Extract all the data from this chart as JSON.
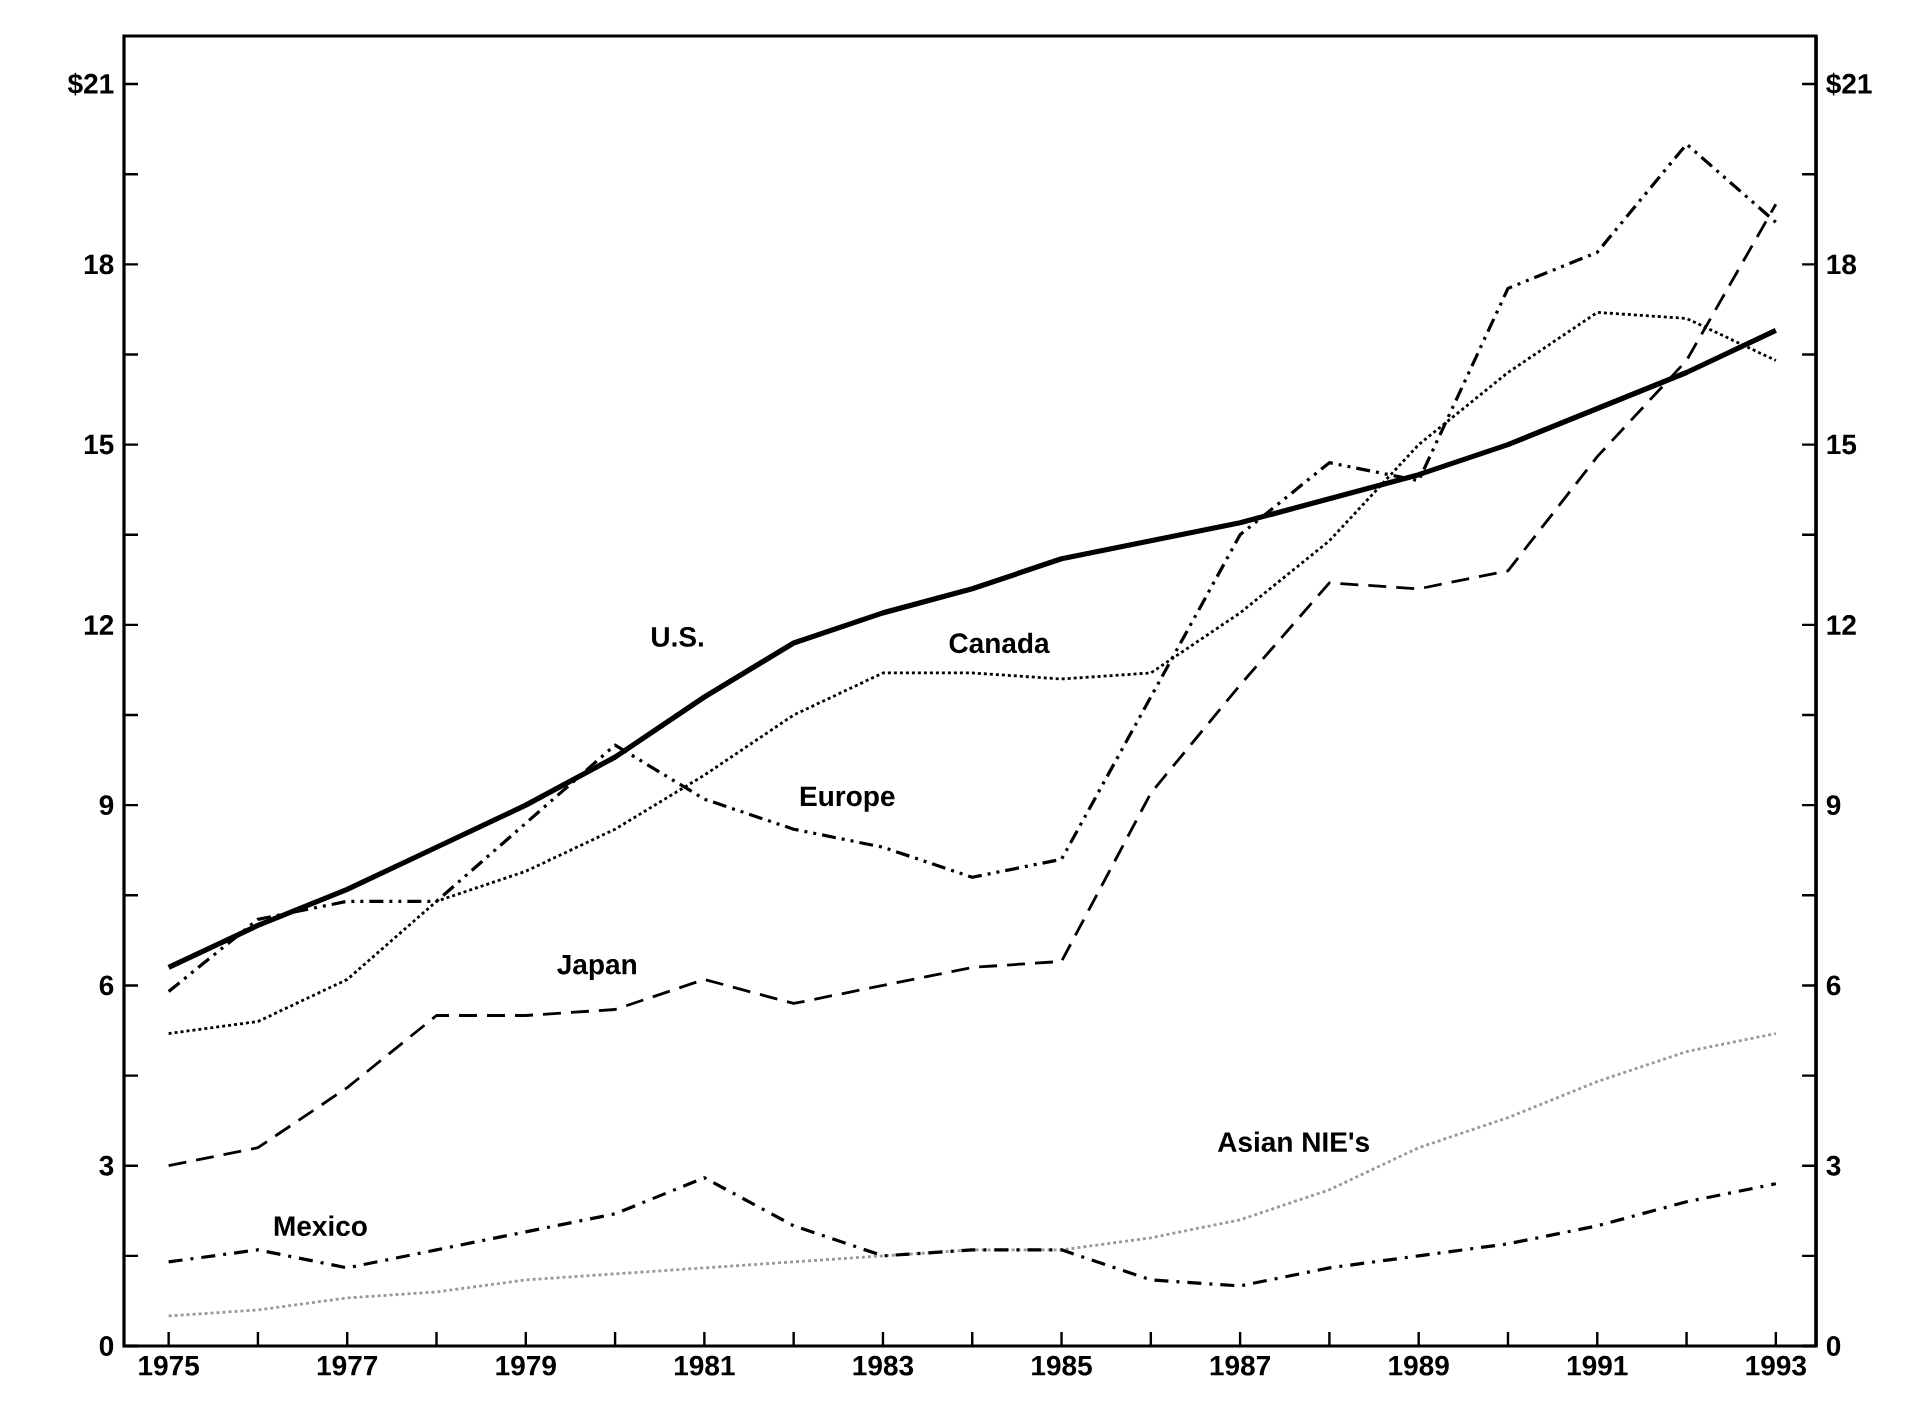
{
  "chart_data": {
    "type": "line",
    "x": [
      1975,
      1976,
      1977,
      1978,
      1979,
      1980,
      1981,
      1982,
      1983,
      1984,
      1985,
      1986,
      1987,
      1988,
      1989,
      1990,
      1991,
      1992,
      1993
    ],
    "series": [
      {
        "name": "U.S.",
        "color": "#000000",
        "line_style": "solid",
        "values": [
          6.3,
          7.0,
          7.6,
          8.3,
          9.0,
          9.8,
          10.8,
          11.7,
          12.2,
          12.6,
          13.1,
          13.4,
          13.7,
          14.1,
          14.5,
          15.0,
          15.6,
          16.2,
          16.9
        ]
      },
      {
        "name": "Canada",
        "color": "#000000",
        "line_style": "dotted",
        "values": [
          5.2,
          5.4,
          6.1,
          7.4,
          7.9,
          8.6,
          9.5,
          10.5,
          11.2,
          11.2,
          11.1,
          11.2,
          12.2,
          13.4,
          15.0,
          16.2,
          17.2,
          17.1,
          16.4
        ]
      },
      {
        "name": "Europe",
        "color": "#000000",
        "line_style": "dashdotdot",
        "values": [
          5.9,
          7.1,
          7.4,
          7.4,
          8.7,
          10.0,
          9.1,
          8.6,
          8.3,
          7.8,
          8.1,
          10.8,
          13.5,
          14.7,
          14.4,
          17.6,
          18.2,
          20.0,
          18.7
        ]
      },
      {
        "name": "Japan",
        "color": "#000000",
        "line_style": "dashed",
        "values": [
          3.0,
          3.3,
          4.3,
          5.5,
          5.5,
          5.6,
          6.1,
          5.7,
          6.0,
          6.3,
          6.4,
          9.2,
          11.0,
          12.7,
          12.6,
          12.9,
          14.8,
          16.4,
          19.0
        ]
      },
      {
        "name": "Asian NIE's",
        "color": "#999999",
        "line_style": "dotted",
        "values": [
          0.5,
          0.6,
          0.8,
          0.9,
          1.1,
          1.2,
          1.3,
          1.4,
          1.5,
          1.6,
          1.6,
          1.8,
          2.1,
          2.6,
          3.3,
          3.8,
          4.4,
          4.9,
          5.2
        ]
      },
      {
        "name": "Mexico",
        "color": "#000000",
        "line_style": "dashdot",
        "values": [
          1.4,
          1.6,
          1.3,
          1.6,
          1.9,
          2.2,
          2.8,
          2.0,
          1.5,
          1.6,
          1.6,
          1.1,
          1.0,
          1.3,
          1.5,
          1.7,
          2.0,
          2.4,
          2.7
        ]
      }
    ],
    "xlim": [
      1974.5,
      1993.45
    ],
    "xticks": [
      1975,
      {
        "value": 1976,
        "label": null
      },
      1977,
      {
        "value": 1978,
        "label": null
      },
      1979,
      {
        "value": 1980,
        "label": null
      },
      1981,
      {
        "value": 1982,
        "label": null
      },
      1983,
      {
        "value": 1984,
        "label": null
      },
      1985,
      {
        "value": 1986,
        "label": null
      },
      1987,
      {
        "value": 1988,
        "label": null
      },
      1989,
      {
        "value": 1990,
        "label": null
      },
      1991,
      {
        "value": 1992,
        "label": null
      },
      1993
    ],
    "ylim": [
      0,
      21.8
    ],
    "yticks": [
      0,
      {
        "value": 1.5,
        "label": null
      },
      3,
      {
        "value": 4.5,
        "label": null
      },
      6,
      {
        "value": 7.5,
        "label": null
      },
      9,
      {
        "value": 10.5,
        "label": null
      },
      12,
      {
        "value": 13.5,
        "label": null
      },
      15,
      {
        "value": 16.5,
        "label": null
      },
      18,
      {
        "value": 19.5,
        "label": null
      },
      {
        "value": 21,
        "label": "$21"
      }
    ],
    "y2lim": [
      0,
      21.8
    ],
    "y2ticks": [
      0,
      {
        "value": 1.5,
        "label": null
      },
      3,
      {
        "value": 4.5,
        "label": null
      },
      6,
      {
        "value": 7.5,
        "label": null
      },
      9,
      {
        "value": 10.5,
        "label": null
      },
      12,
      {
        "value": 13.5,
        "label": null
      },
      15,
      {
        "value": 16.5,
        "label": null
      },
      18,
      {
        "value": 19.5,
        "label": null
      },
      {
        "value": 21,
        "label": "$21"
      }
    ],
    "marker": "none"
  }
}
